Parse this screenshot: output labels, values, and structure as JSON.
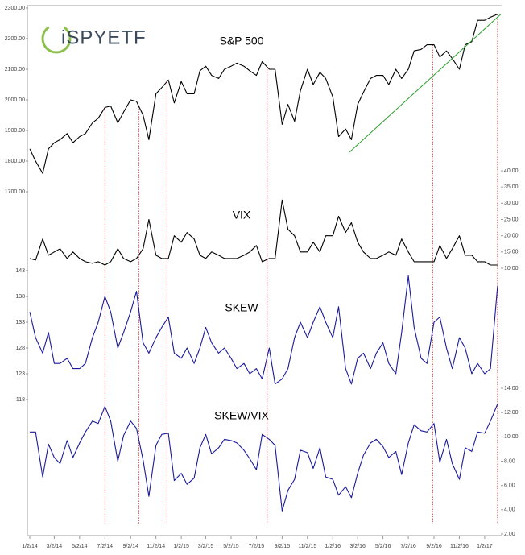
{
  "chart_data": {
    "type": "line",
    "logo": "iSPYETF",
    "xlim": [
      "1/2/14",
      "2/10/17"
    ],
    "xticks": [
      "1/2/14",
      "3/2/14",
      "5/2/14",
      "7/2/14",
      "9/2/14",
      "11/2/14",
      "1/2/15",
      "3/2/15",
      "5/2/15",
      "7/2/15",
      "9/2/15",
      "11/2/15",
      "1/2/16",
      "3/2/16",
      "5/2/16",
      "7/2/16",
      "9/2/16",
      "11/2/16",
      "1/2/17"
    ],
    "x": [
      "1/2/14",
      "1/16/14",
      "2/2/14",
      "2/16/14",
      "3/2/14",
      "3/16/14",
      "4/2/14",
      "4/16/14",
      "5/2/14",
      "5/16/14",
      "6/2/14",
      "6/16/14",
      "7/2/14",
      "7/16/14",
      "8/2/14",
      "8/16/14",
      "9/2/14",
      "9/16/14",
      "10/2/14",
      "10/16/14",
      "11/2/14",
      "11/16/14",
      "12/2/14",
      "12/16/14",
      "1/2/15",
      "1/16/15",
      "2/2/15",
      "2/16/15",
      "3/2/15",
      "3/16/15",
      "4/2/15",
      "4/16/15",
      "5/2/15",
      "5/16/15",
      "6/2/15",
      "6/16/15",
      "7/2/15",
      "7/16/15",
      "8/2/15",
      "8/16/15",
      "9/2/15",
      "9/16/15",
      "10/2/15",
      "10/16/15",
      "11/2/15",
      "11/16/15",
      "12/2/15",
      "12/16/15",
      "1/2/16",
      "1/16/16",
      "2/2/16",
      "2/16/16",
      "3/2/16",
      "3/16/16",
      "4/2/16",
      "4/16/16",
      "5/2/16",
      "5/16/16",
      "6/2/16",
      "6/16/16",
      "7/2/16",
      "7/16/16",
      "8/2/16",
      "8/16/16",
      "9/2/16",
      "9/16/16",
      "10/2/16",
      "10/16/16",
      "11/2/16",
      "11/16/16",
      "12/2/16",
      "12/16/16",
      "1/2/17",
      "1/16/17",
      "2/2/17"
    ],
    "panels": [
      {
        "title": "S&P 500",
        "color": "#000000",
        "axis_side": "left",
        "ylim": [
          1700,
          2300
        ],
        "yticks": [
          {
            "value": 1700,
            "label": "1700.00"
          },
          {
            "value": 1800,
            "label": "1800.00"
          },
          {
            "value": 1900,
            "label": "1900.00"
          },
          {
            "value": 2000,
            "label": "2000.00"
          },
          {
            "value": 2100,
            "label": "2100.00"
          },
          {
            "value": 2200,
            "label": "2200.00"
          },
          {
            "value": 2300,
            "label": "2300.00"
          }
        ],
        "values": [
          1840,
          1800,
          1760,
          1840,
          1860,
          1870,
          1890,
          1860,
          1880,
          1890,
          1925,
          1940,
          1975,
          1980,
          1925,
          1960,
          2000,
          1995,
          1950,
          1870,
          2020,
          2040,
          2065,
          1990,
          2060,
          2020,
          2020,
          2095,
          2110,
          2080,
          2070,
          2100,
          2110,
          2120,
          2110,
          2095,
          2080,
          2125,
          2100,
          2100,
          1920,
          1985,
          1930,
          2030,
          2100,
          2050,
          2090,
          2070,
          2010,
          1880,
          1905,
          1870,
          1985,
          2025,
          2070,
          2080,
          2080,
          2050,
          2100,
          2070,
          2100,
          2160,
          2165,
          2180,
          2180,
          2140,
          2160,
          2135,
          2100,
          2180,
          2190,
          2260,
          2260,
          2270,
          2280
        ]
      },
      {
        "title": "VIX",
        "color": "#000000",
        "axis_side": "right",
        "ylim": [
          10,
          40
        ],
        "yticks": [
          {
            "value": 10,
            "label": "10.00"
          },
          {
            "value": 15,
            "label": "15.00"
          },
          {
            "value": 20,
            "label": "20.00"
          },
          {
            "value": 25,
            "label": "25.00"
          },
          {
            "value": 30,
            "label": "30.00"
          },
          {
            "value": 35,
            "label": "35.00"
          },
          {
            "value": 40,
            "label": "40.00"
          }
        ],
        "values": [
          13,
          12.5,
          19,
          14,
          15,
          16,
          13,
          15,
          13,
          12,
          11.5,
          12,
          11,
          12,
          16,
          13,
          12,
          13,
          16,
          25,
          14,
          13,
          13,
          20,
          18,
          21,
          19,
          14,
          13,
          15,
          14,
          13,
          13,
          13,
          14,
          15,
          17,
          12,
          13,
          13,
          31,
          22,
          20,
          15,
          15,
          18,
          15,
          20,
          20,
          26,
          21,
          24,
          18,
          15,
          13,
          13,
          14,
          15,
          14,
          19,
          15,
          12,
          12,
          12,
          12,
          17,
          13,
          16,
          20,
          14,
          14,
          12,
          12,
          11,
          11
        ]
      },
      {
        "title": "SKEW",
        "color": "#1a1a9c",
        "axis_side": "left",
        "ylim": [
          118,
          143
        ],
        "yticks": [
          118,
          123,
          128,
          133,
          138,
          143
        ],
        "values": [
          135,
          130,
          127,
          131,
          125,
          125,
          126,
          124,
          124,
          125,
          130,
          133,
          138,
          135,
          128,
          131,
          135,
          139,
          129,
          127,
          130,
          132,
          134,
          127,
          126,
          128,
          125,
          128,
          132,
          129,
          127,
          128,
          126,
          124,
          125,
          123,
          124,
          122,
          128,
          121,
          122,
          124,
          130,
          133,
          130,
          133,
          136,
          133,
          130,
          136,
          124,
          121,
          126,
          127,
          124,
          127,
          129,
          125,
          123,
          131,
          142,
          132,
          126,
          125,
          133,
          134,
          128,
          124,
          130,
          128,
          123,
          125,
          123,
          124,
          140
        ]
      },
      {
        "title": "SKEW/VIX",
        "color": "#1a1a9c",
        "axis_side": "right",
        "ylim": [
          2,
          14
        ],
        "yticks": [
          {
            "value": 2,
            "label": "2.00"
          },
          {
            "value": 4,
            "label": "4.00"
          },
          {
            "value": 6,
            "label": "6.00"
          },
          {
            "value": 8,
            "label": "8.00"
          },
          {
            "value": 10,
            "label": "10.00"
          },
          {
            "value": 12,
            "label": "12.00"
          },
          {
            "value": 14,
            "label": "14.00"
          }
        ],
        "values": [
          10.4,
          10.4,
          6.7,
          9.4,
          8.3,
          7.8,
          9.7,
          8.3,
          9.5,
          10.4,
          11.3,
          11.1,
          12.5,
          11.3,
          8.0,
          10.1,
          11.3,
          10.7,
          8.1,
          5.1,
          9.3,
          10.2,
          10.3,
          6.4,
          7.0,
          6.1,
          6.6,
          9.1,
          10.2,
          8.6,
          9.1,
          9.8,
          9.7,
          9.5,
          8.9,
          8.2,
          7.3,
          10.2,
          9.8,
          9.3,
          3.9,
          5.6,
          6.5,
          8.9,
          8.7,
          7.4,
          9.1,
          6.7,
          6.5,
          5.2,
          5.9,
          5.0,
          7.0,
          8.5,
          9.5,
          9.8,
          9.2,
          8.3,
          8.8,
          6.9,
          9.5,
          11.0,
          10.5,
          10.4,
          11.1,
          7.9,
          9.8,
          7.8,
          6.5,
          9.1,
          8.8,
          10.4,
          10.3,
          11.3,
          12.7
        ]
      }
    ],
    "trendline": {
      "color": "#2e9e2e",
      "x": [
        "2/11/16",
        "2/10/17"
      ],
      "values": [
        1829,
        2280
      ]
    },
    "reference_lines": {
      "color": "#e03030",
      "x": [
        "7/2/14",
        "9/22/14",
        "11/29/14",
        "7/28/15",
        "8/30/16",
        "2/2/17"
      ]
    }
  }
}
